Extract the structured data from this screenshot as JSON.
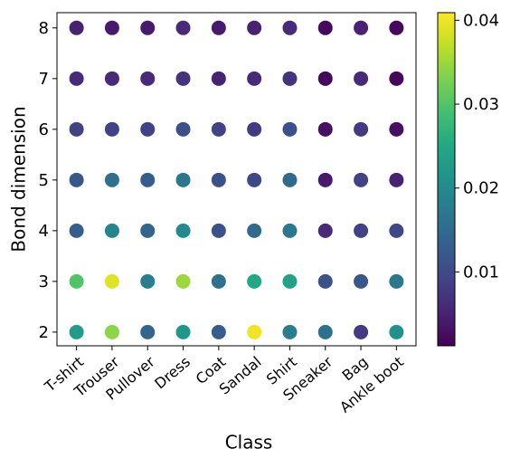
{
  "chart_data": {
    "type": "scatter",
    "xlabel": "Class",
    "ylabel": "Bond dimension",
    "categories": [
      "T-shirt",
      "Trouser",
      "Pullover",
      "Dress",
      "Coat",
      "Sandal",
      "Shirt",
      "Sneaker",
      "Bag",
      "Ankle boot"
    ],
    "y": [
      2,
      3,
      4,
      5,
      6,
      7,
      8
    ],
    "values": [
      [
        0.023,
        0.034,
        0.014,
        0.022,
        0.013,
        0.04,
        0.018,
        0.016,
        0.008,
        0.021
      ],
      [
        0.03,
        0.039,
        0.018,
        0.035,
        0.016,
        0.025,
        0.024,
        0.011,
        0.012,
        0.017
      ],
      [
        0.013,
        0.019,
        0.014,
        0.02,
        0.011,
        0.015,
        0.017,
        0.006,
        0.009,
        0.01
      ],
      [
        0.012,
        0.016,
        0.013,
        0.017,
        0.011,
        0.01,
        0.015,
        0.004,
        0.009,
        0.005
      ],
      [
        0.009,
        0.009,
        0.009,
        0.011,
        0.009,
        0.008,
        0.011,
        0.003,
        0.008,
        0.003
      ],
      [
        0.006,
        0.006,
        0.006,
        0.007,
        0.005,
        0.006,
        0.007,
        0.002,
        0.006,
        0.002
      ],
      [
        0.005,
        0.004,
        0.004,
        0.006,
        0.004,
        0.005,
        0.006,
        0.002,
        0.005,
        0.002
      ]
    ],
    "ylim": [
      1.73,
      8.3
    ],
    "yticks": [
      2,
      3,
      4,
      5,
      6,
      7,
      8
    ],
    "clim": [
      0.0012,
      0.0409
    ],
    "cticks": [
      0.01,
      0.02,
      0.03,
      0.04
    ],
    "colormap": "viridis"
  }
}
